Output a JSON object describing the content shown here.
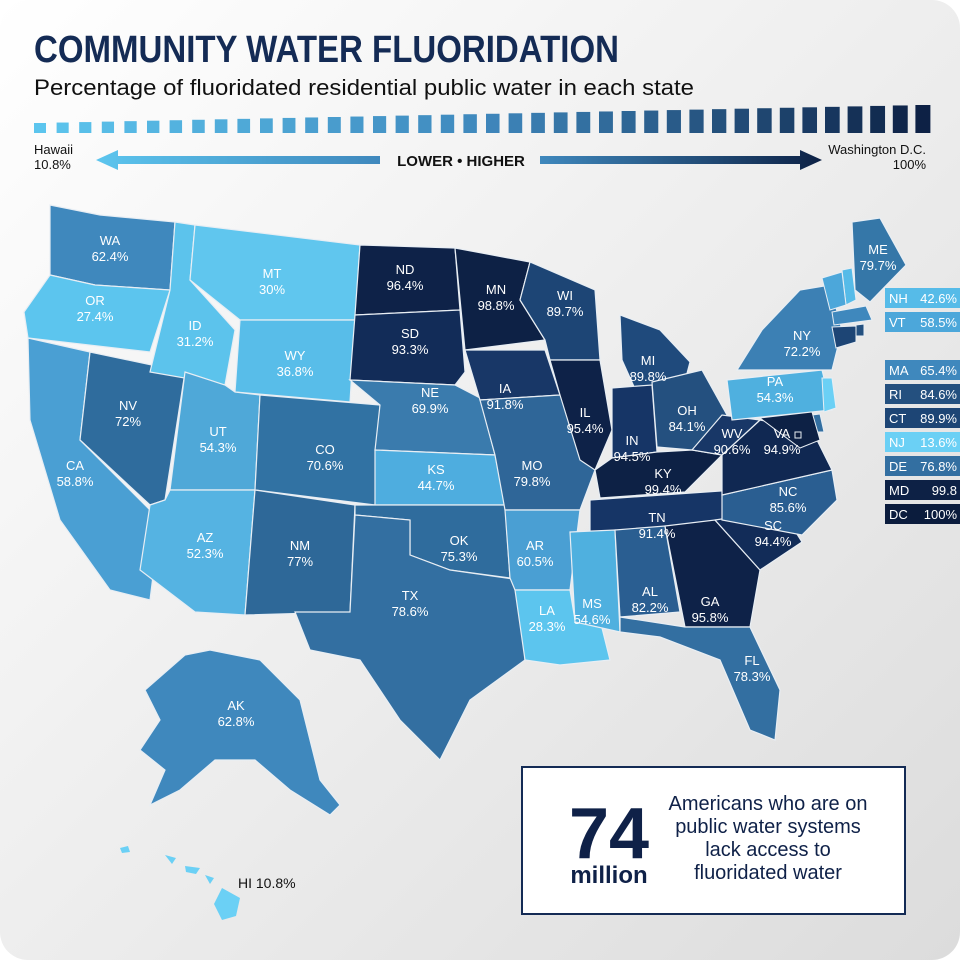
{
  "header": {
    "title": "COMMUNITY WATER FLUORIDATION",
    "subtitle": "Percentage of fluoridated residential public water in each state"
  },
  "legend": {
    "low_name": "Hawaii",
    "low_value": "10.8%",
    "middle": "LOWER • HIGHER",
    "high_name": "Washington D.C.",
    "high_value": "100%"
  },
  "states": [
    {
      "abbr": "WA",
      "value": "62.4%",
      "color": "#3f88bd"
    },
    {
      "abbr": "OR",
      "value": "27.4%",
      "color": "#5cc5ee"
    },
    {
      "abbr": "CA",
      "value": "58.8%",
      "color": "#4a9fd3"
    },
    {
      "abbr": "NV",
      "value": "72%",
      "color": "#2f6c9d"
    },
    {
      "abbr": "ID",
      "value": "31.2%",
      "color": "#5cc3ec"
    },
    {
      "abbr": "MT",
      "value": "30%",
      "color": "#60c6ee"
    },
    {
      "abbr": "WY",
      "value": "36.8%",
      "color": "#58bde9"
    },
    {
      "abbr": "UT",
      "value": "54.3%",
      "color": "#4fa8d8"
    },
    {
      "abbr": "AZ",
      "value": "52.3%",
      "color": "#55b3e2"
    },
    {
      "abbr": "CO",
      "value": "70.6%",
      "color": "#3172a3"
    },
    {
      "abbr": "NM",
      "value": "77%",
      "color": "#2e6898"
    },
    {
      "abbr": "ND",
      "value": "96.4%",
      "color": "#0e2248"
    },
    {
      "abbr": "SD",
      "value": "93.3%",
      "color": "#122c58"
    },
    {
      "abbr": "NE",
      "value": "69.9%",
      "color": "#3a7bad"
    },
    {
      "abbr": "KS",
      "value": "44.7%",
      "color": "#4eaddf"
    },
    {
      "abbr": "OK",
      "value": "75.3%",
      "color": "#2f6c9d"
    },
    {
      "abbr": "TX",
      "value": "78.6%",
      "color": "#336fa1"
    },
    {
      "abbr": "MN",
      "value": "98.8%",
      "color": "#0d2145"
    },
    {
      "abbr": "IA",
      "value": "91.8%",
      "color": "#183767"
    },
    {
      "abbr": "MO",
      "value": "79.8%",
      "color": "#2f6698"
    },
    {
      "abbr": "AR",
      "value": "60.5%",
      "color": "#4a9fd3"
    },
    {
      "abbr": "LA",
      "value": "28.3%",
      "color": "#5cc5ee"
    },
    {
      "abbr": "WI",
      "value": "89.7%",
      "color": "#1d4575"
    },
    {
      "abbr": "IL",
      "value": "95.4%",
      "color": "#0e2248"
    },
    {
      "abbr": "MI",
      "value": "89.8%",
      "color": "#1f4a7c"
    },
    {
      "abbr": "IN",
      "value": "94.5%",
      "color": "#163566"
    },
    {
      "abbr": "OH",
      "value": "84.1%",
      "color": "#24507f"
    },
    {
      "abbr": "KY",
      "value": "99.4%",
      "color": "#0d2145"
    },
    {
      "abbr": "TN",
      "value": "91.4%",
      "color": "#163566"
    },
    {
      "abbr": "MS",
      "value": "54.6%",
      "color": "#4fb0df"
    },
    {
      "abbr": "AL",
      "value": "82.2%",
      "color": "#2a5e91"
    },
    {
      "abbr": "GA",
      "value": "95.8%",
      "color": "#0e2248"
    },
    {
      "abbr": "FL",
      "value": "78.3%",
      "color": "#336fa1"
    },
    {
      "abbr": "SC",
      "value": "94.4%",
      "color": "#122c58"
    },
    {
      "abbr": "NC",
      "value": "85.6%",
      "color": "#2a5e91"
    },
    {
      "abbr": "VA",
      "value": "94.9%",
      "color": "#102852"
    },
    {
      "abbr": "WV",
      "value": "90.6%",
      "color": "#183767"
    },
    {
      "abbr": "PA",
      "value": "54.3%",
      "color": "#4fb0df"
    },
    {
      "abbr": "NY",
      "value": "72.2%",
      "color": "#3c80b4"
    },
    {
      "abbr": "ME",
      "value": "79.7%",
      "color": "#3577a8"
    },
    {
      "abbr": "AK",
      "value": "62.8%",
      "color": "#3f88bd"
    }
  ],
  "hawaii": "HI 10.8%",
  "small_states": [
    {
      "abbr": "NH",
      "value": "42.6%",
      "color": "#56bbe8"
    },
    {
      "abbr": "VT",
      "value": "58.5%",
      "color": "#4ca7da"
    },
    {
      "abbr": "MA",
      "value": "65.4%",
      "color": "#3f88bd"
    },
    {
      "abbr": "RI",
      "value": "84.6%",
      "color": "#24507f"
    },
    {
      "abbr": "CT",
      "value": "89.9%",
      "color": "#1d4575"
    },
    {
      "abbr": "NJ",
      "value": "13.6%",
      "color": "#6bd0f5"
    },
    {
      "abbr": "DE",
      "value": "76.8%",
      "color": "#336fa1"
    },
    {
      "abbr": "MD",
      "value": "99.8",
      "color": "#0d2145"
    },
    {
      "abbr": "DC",
      "value": "100%",
      "color": "#0b1c3d"
    }
  ],
  "callout": {
    "number": "74",
    "unit": "million",
    "lines": [
      "Americans who are on",
      "public water systems",
      "lack access to",
      "fluoridated water"
    ]
  }
}
